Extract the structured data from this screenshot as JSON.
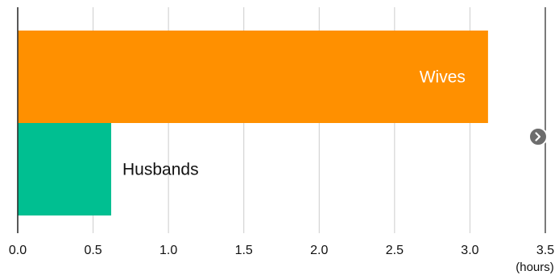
{
  "chart_data": {
    "type": "bar",
    "orientation": "horizontal",
    "categories": [
      "Wives",
      "Husbands"
    ],
    "values": [
      3.12,
      0.62
    ],
    "colors": [
      "#ff9000",
      "#00bf91"
    ],
    "label_colors": [
      "#ffffff",
      "#111111"
    ],
    "xlim": [
      0,
      3.5
    ],
    "xticks": [
      "0.0",
      "0.5",
      "1.0",
      "1.5",
      "2.0",
      "2.5",
      "3.0",
      "3.5"
    ],
    "xunit": "(hours)",
    "grid": true
  },
  "ui": {
    "next_icon": "chevron-right-icon"
  }
}
